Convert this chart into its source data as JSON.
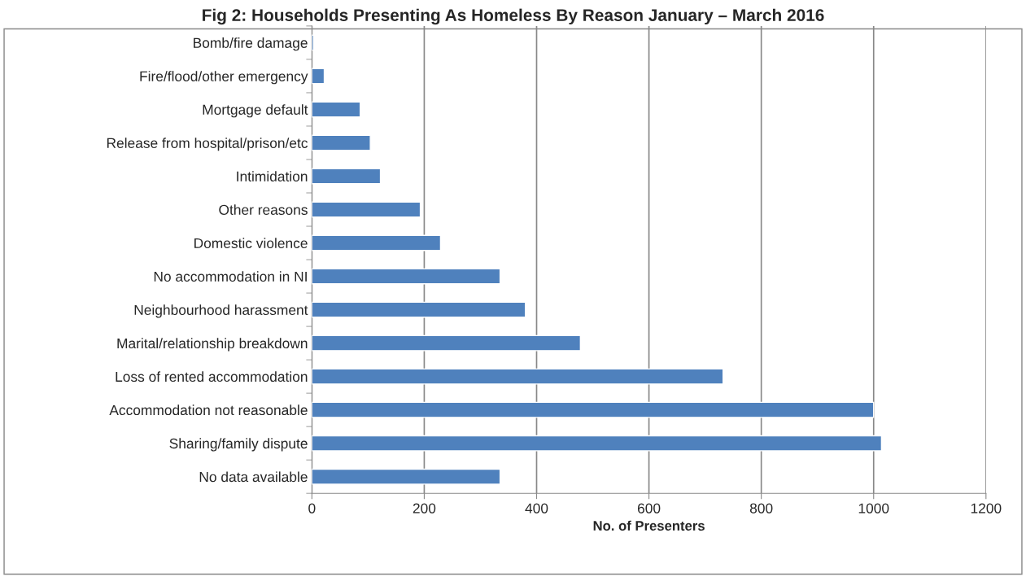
{
  "chart_data": {
    "type": "bar",
    "orientation": "horizontal",
    "title": "Fig 2: Households Presenting As Homeless By Reason January – March 2016",
    "xlabel": "No. of Presenters",
    "categories": [
      "Bomb/fire damage",
      "Fire/flood/other emergency",
      "Mortgage default",
      "Release from hospital/prison/etc",
      "Intimidation",
      "Other reasons",
      "Domestic violence",
      "No accommodation in NI",
      "Neighbourhood harassment",
      "Marital/relationship breakdown",
      "Loss of rented accommodation",
      "Accommodation not reasonable",
      "Sharing/family dispute",
      "No data available"
    ],
    "values": [
      3,
      22,
      86,
      104,
      122,
      193,
      229,
      335,
      380,
      478,
      732,
      1000,
      1014,
      335
    ],
    "color": "#4f81bd",
    "xlim": [
      0,
      1200
    ],
    "xticks": [
      0,
      200,
      400,
      600,
      800,
      1000,
      1200
    ],
    "grid": "x",
    "legend": false
  }
}
